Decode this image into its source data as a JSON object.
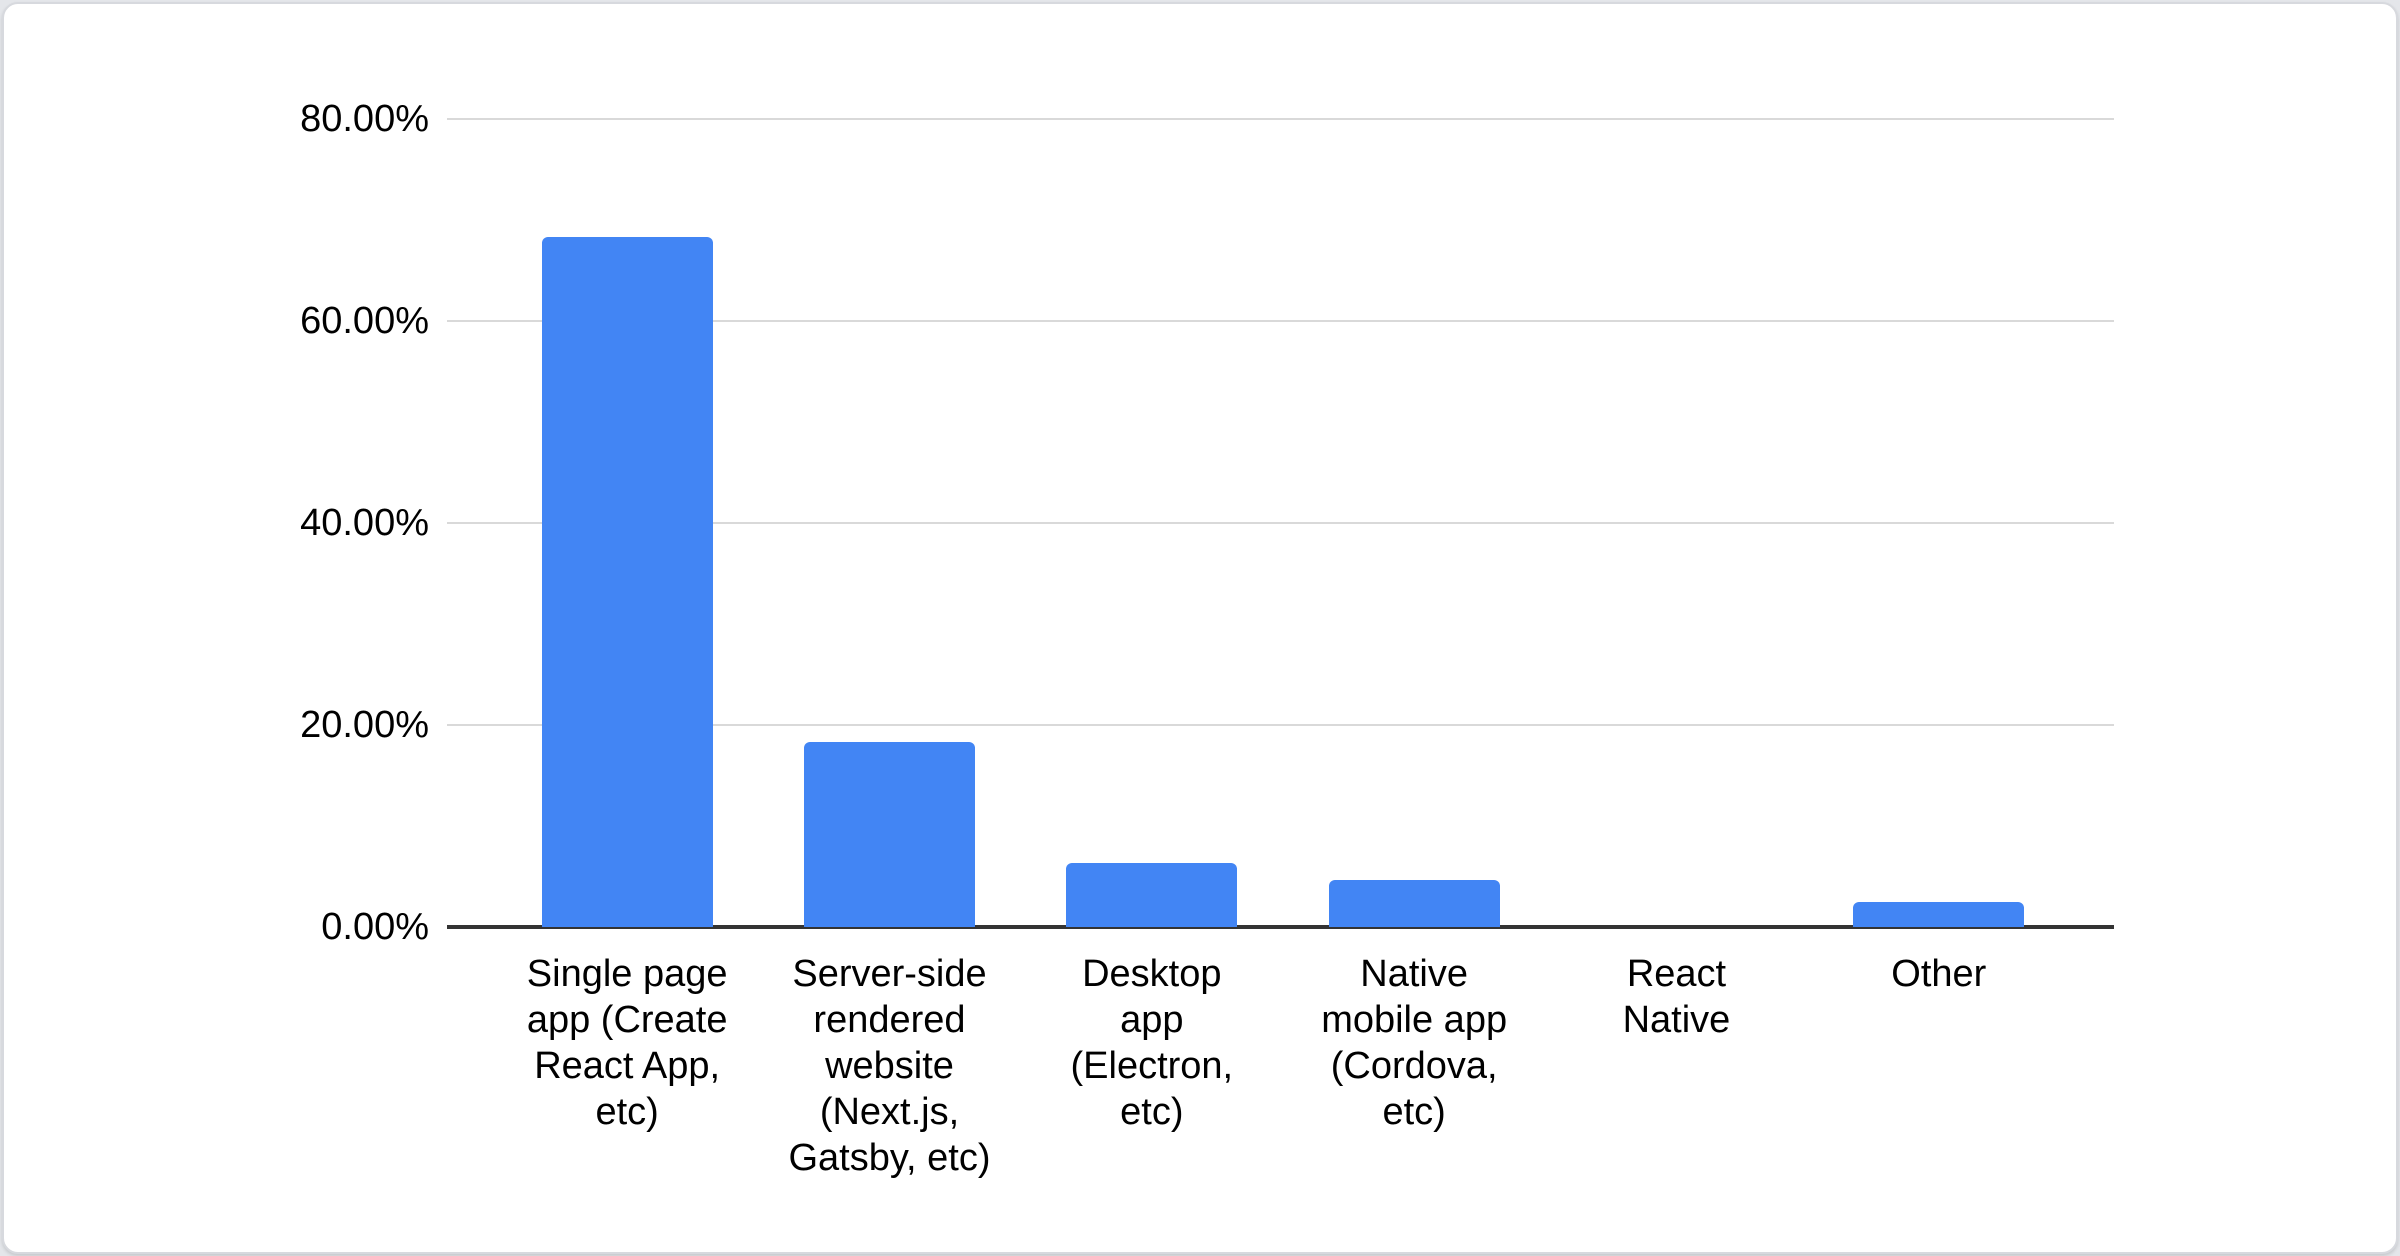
{
  "page": {
    "background": "#e4e6ea",
    "card_background": "#ffffff",
    "card_border": "#d7d9de"
  },
  "chart_data": {
    "type": "bar",
    "title": "",
    "xlabel": "",
    "ylabel": "",
    "categories": [
      "Single page app (Create React App, etc)",
      "Server-side rendered website (Next.js, Gatsby, etc)",
      "Desktop app (Electron, etc)",
      "Native mobile app (Cordova, etc)",
      "React Native",
      "Other"
    ],
    "category_label_lines": [
      [
        "Single page",
        "app (Create",
        "React App,",
        "etc)"
      ],
      [
        "Server-side",
        "rendered",
        "website",
        "(Next.js,",
        "Gatsby, etc)"
      ],
      [
        "Desktop",
        "app",
        "(Electron,",
        "etc)"
      ],
      [
        "Native",
        "mobile app",
        "(Cordova,",
        "etc)"
      ],
      [
        "React",
        "Native"
      ],
      [
        "Other"
      ]
    ],
    "values": [
      68.3,
      18.3,
      6.3,
      4.7,
      0,
      2.5
    ],
    "value_unit": "%",
    "y_axis": {
      "min": 0,
      "max": 80,
      "ticks": [
        {
          "label": "80.00%",
          "value": 80
        },
        {
          "label": "60.00%",
          "value": 60
        },
        {
          "label": "40.00%",
          "value": 40
        },
        {
          "label": "20.00%",
          "value": 20
        },
        {
          "label": "0.00%",
          "value": 0
        }
      ]
    },
    "grid": true,
    "legend": "none",
    "colors": {
      "bar": "#4285f4",
      "gridline": "#d9d9d9",
      "axis_line": "#333333",
      "text": "#000000"
    }
  }
}
